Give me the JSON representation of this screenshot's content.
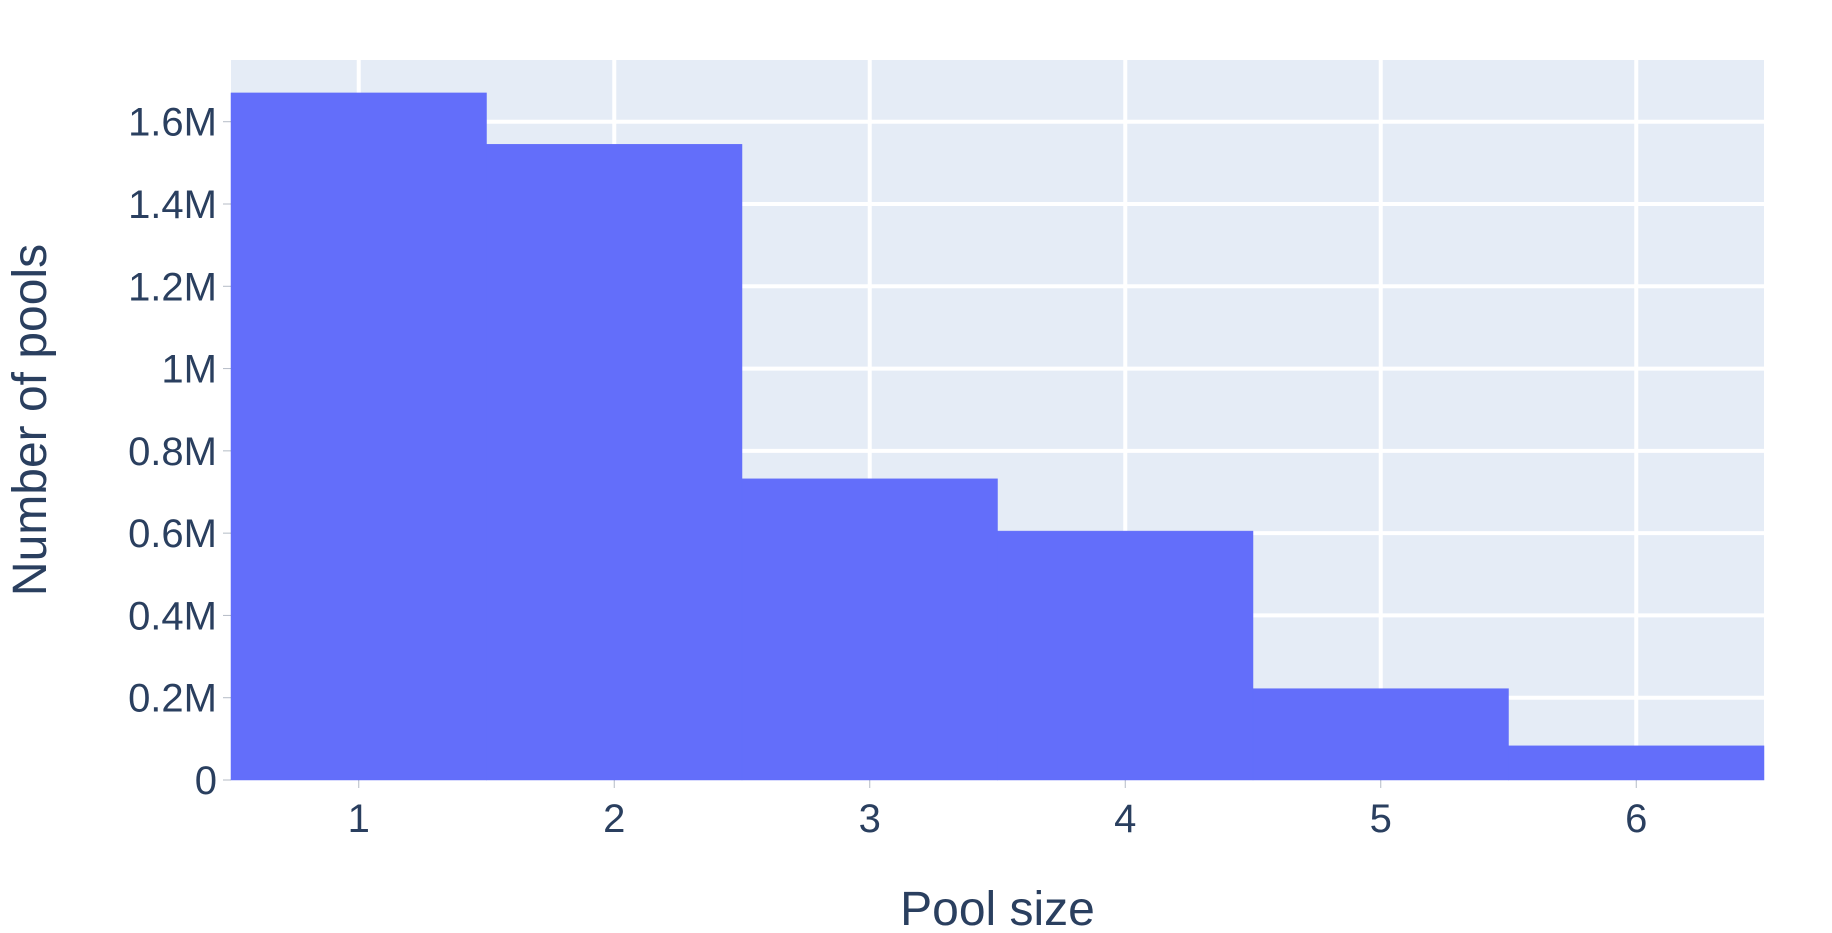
{
  "chart_data": {
    "type": "bar",
    "categories": [
      "1",
      "2",
      "3",
      "4",
      "5",
      "6"
    ],
    "x": [
      1,
      2,
      3,
      4,
      5,
      6
    ],
    "values": [
      1670000,
      1545000,
      732000,
      605000,
      222000,
      83000
    ],
    "title": "",
    "xlabel": "Pool size",
    "ylabel": "Number of pools",
    "xlim": [
      0.5,
      6.5
    ],
    "ylim": [
      0,
      1750000
    ],
    "yticks": [
      0,
      200000,
      400000,
      600000,
      800000,
      1000000,
      1200000,
      1400000,
      1600000
    ],
    "ytick_labels": [
      "0",
      "0.2M",
      "0.4M",
      "0.6M",
      "0.8M",
      "1M",
      "1.2M",
      "1.4M",
      "1.6M"
    ],
    "xticks": [
      1,
      2,
      3,
      4,
      5,
      6
    ],
    "xtick_labels": [
      "1",
      "2",
      "3",
      "4",
      "5",
      "6"
    ],
    "grid": true,
    "bar_gap": 0,
    "colors": {
      "bar": "#636efa",
      "plot_background": "#e5ecf6",
      "grid": "#ffffff",
      "text": "#2a3f5f"
    }
  }
}
